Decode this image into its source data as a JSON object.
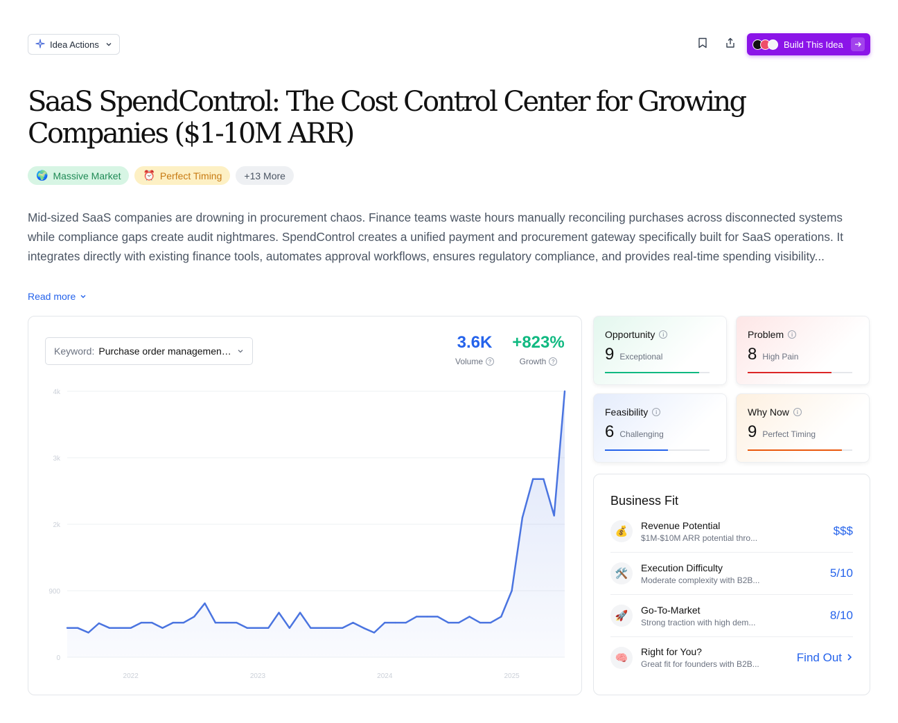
{
  "toolbar": {
    "idea_actions_label": "Idea Actions",
    "build_label": "Build This Idea"
  },
  "title": "SaaS SpendControl: The Cost Control Center for Growing Companies ($1-10M ARR)",
  "tags": [
    {
      "emoji": "🌍",
      "label": "Massive Market"
    },
    {
      "emoji": "⏰",
      "label": "Perfect Timing"
    },
    {
      "label": "+13 More"
    }
  ],
  "description": "Mid-sized SaaS companies are drowning in procurement chaos. Finance teams waste hours manually reconciling purchases across disconnected systems while compliance gaps create audit nightmares. SpendControl creates a unified payment and procurement gateway specifically built for SaaS operations. It integrates directly with existing finance tools, automates approval workflows, ensures regulatory compliance, and provides real-time spending visibility...",
  "read_more": "Read more",
  "keyword": {
    "label": "Keyword:",
    "value": "Purchase order management software"
  },
  "stats": {
    "volume": {
      "value": "3.6K",
      "label": "Volume"
    },
    "growth": {
      "value": "+823%",
      "label": "Growth"
    }
  },
  "scores": [
    {
      "title": "Opportunity",
      "value": "9",
      "sub": "Exceptional",
      "fraction": 0.9,
      "color": "#10b981"
    },
    {
      "title": "Problem",
      "value": "8",
      "sub": "High Pain",
      "fraction": 0.8,
      "color": "#dc2626"
    },
    {
      "title": "Feasibility",
      "value": "6",
      "sub": "Challenging",
      "fraction": 0.6,
      "color": "#2563eb"
    },
    {
      "title": "Why Now",
      "value": "9",
      "sub": "Perfect Timing",
      "fraction": 0.9,
      "color": "#ea580c"
    }
  ],
  "business_fit": {
    "title": "Business Fit",
    "rows": [
      {
        "icon": "💰",
        "name": "Revenue Potential",
        "desc": "$1M-$10M ARR potential thro...",
        "score": "$$$"
      },
      {
        "icon": "🛠️",
        "name": "Execution Difficulty",
        "desc": "Moderate complexity with B2B...",
        "score": "5/10"
      },
      {
        "icon": "🚀",
        "name": "Go-To-Market",
        "desc": "Strong traction with high dem...",
        "score": "8/10"
      },
      {
        "icon": "🧠",
        "name": "Right for You?",
        "desc": "Great fit for founders with B2B...",
        "score": "Find Out"
      }
    ]
  },
  "chart_data": {
    "type": "area",
    "ylim": [
      0,
      4000
    ],
    "ytick_labels": [
      "0",
      "900",
      "2k",
      "3k",
      "4k"
    ],
    "xtick_labels": [
      "2022",
      "2023",
      "2024",
      "2025"
    ],
    "x_start_year": 2021.5,
    "x_step_months": 1,
    "values": [
      440,
      440,
      370,
      510,
      440,
      440,
      440,
      520,
      520,
      440,
      520,
      520,
      610,
      810,
      520,
      520,
      520,
      440,
      440,
      440,
      670,
      440,
      670,
      440,
      440,
      440,
      440,
      520,
      440,
      370,
      520,
      520,
      520,
      610,
      610,
      610,
      520,
      520,
      610,
      520,
      520,
      610,
      1000,
      2100,
      2680,
      2680,
      2130,
      4000
    ],
    "line_color": "#4a74e0"
  }
}
